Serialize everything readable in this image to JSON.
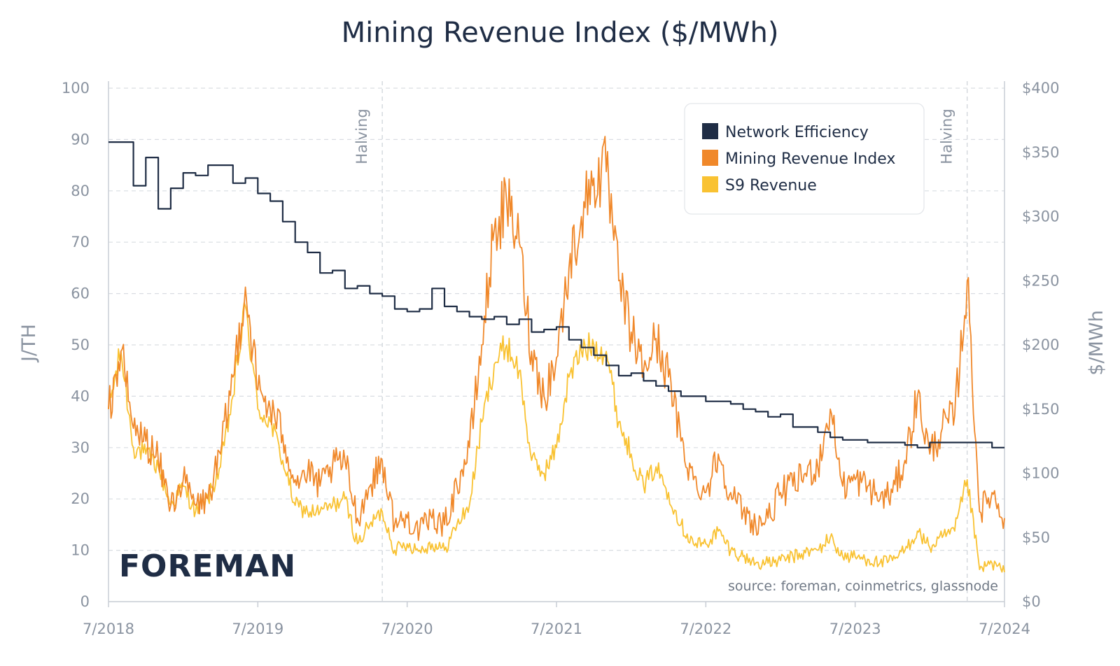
{
  "title": "Mining Revenue Index ($/MWh)",
  "chart_data": {
    "type": "line",
    "title": "Mining Revenue Index ($/MWh)",
    "x_axis": {
      "ticks": [
        "7/2018",
        "7/2019",
        "7/2020",
        "7/2021",
        "7/2022",
        "7/2023",
        "7/2024"
      ],
      "range": [
        "2018-07",
        "2024-07"
      ]
    },
    "y_axis_left": {
      "label": "J/TH",
      "ticks": [
        "0",
        "10",
        "20",
        "30",
        "40",
        "50",
        "60",
        "70",
        "80",
        "90",
        "100"
      ],
      "ylim": [
        0,
        100
      ]
    },
    "y_axis_right": {
      "label": "$/MWh",
      "ticks": [
        "$0",
        "$50",
        "$100",
        "$150",
        "$200",
        "$250",
        "$300",
        "$350",
        "$400"
      ],
      "ylim": [
        0,
        400
      ]
    },
    "grid": true,
    "legend_placement": "top-right",
    "annotations": [
      {
        "text": "Halving",
        "date": "2020-05"
      },
      {
        "text": "Halving",
        "date": "2024-04"
      }
    ],
    "source_text": "source: foreman, coinmetrics, glassnode",
    "brand": "FOREMAN",
    "series": [
      {
        "name": "Network Efficiency",
        "axis": "left",
        "color": "#1f2d45",
        "step": true,
        "points": [
          [
            "2018-07",
            89.5
          ],
          [
            "2018-09",
            81
          ],
          [
            "2018-10",
            86.5
          ],
          [
            "2018-11",
            76.5
          ],
          [
            "2018-12",
            80.5
          ],
          [
            "2019-01",
            83.5
          ],
          [
            "2019-02",
            83
          ],
          [
            "2019-03",
            85
          ],
          [
            "2019-05",
            81.5
          ],
          [
            "2019-06",
            82.5
          ],
          [
            "2019-07",
            79.5
          ],
          [
            "2019-08",
            78
          ],
          [
            "2019-09",
            74
          ],
          [
            "2019-10",
            70
          ],
          [
            "2019-11",
            68
          ],
          [
            "2019-12",
            64
          ],
          [
            "2020-01",
            64.5
          ],
          [
            "2020-02",
            61
          ],
          [
            "2020-03",
            61.5
          ],
          [
            "2020-04",
            60
          ],
          [
            "2020-05",
            59.5
          ],
          [
            "2020-06",
            57
          ],
          [
            "2020-07",
            56.5
          ],
          [
            "2020-08",
            57
          ],
          [
            "2020-09",
            61
          ],
          [
            "2020-10",
            57.5
          ],
          [
            "2020-11",
            56.5
          ],
          [
            "2020-12",
            55.5
          ],
          [
            "2021-01",
            55
          ],
          [
            "2021-02",
            55.5
          ],
          [
            "2021-03",
            54
          ],
          [
            "2021-04",
            55
          ],
          [
            "2021-05",
            52.5
          ],
          [
            "2021-06",
            53
          ],
          [
            "2021-07",
            53.5
          ],
          [
            "2021-08",
            51
          ],
          [
            "2021-09",
            49.5
          ],
          [
            "2021-10",
            48
          ],
          [
            "2021-11",
            46
          ],
          [
            "2021-12",
            44
          ],
          [
            "2022-01",
            44.5
          ],
          [
            "2022-02",
            43
          ],
          [
            "2022-03",
            42
          ],
          [
            "2022-04",
            41
          ],
          [
            "2022-05",
            40
          ],
          [
            "2022-07",
            39
          ],
          [
            "2022-09",
            38.5
          ],
          [
            "2022-10",
            37.5
          ],
          [
            "2022-11",
            37
          ],
          [
            "2022-12",
            36
          ],
          [
            "2023-01",
            36.5
          ],
          [
            "2023-02",
            34
          ],
          [
            "2023-04",
            33
          ],
          [
            "2023-05",
            32
          ],
          [
            "2023-06",
            31.5
          ],
          [
            "2023-08",
            31
          ],
          [
            "2023-11",
            30.5
          ],
          [
            "2023-12",
            30
          ],
          [
            "2024-01",
            31
          ],
          [
            "2024-06",
            30
          ],
          [
            "2024-07",
            30
          ]
        ]
      },
      {
        "name": "Mining Revenue Index",
        "axis": "right",
        "color": "#f0882a",
        "points": [
          [
            "2018-07",
            150
          ],
          [
            "2018-08",
            195
          ],
          [
            "2018-09",
            135
          ],
          [
            "2018-10",
            125
          ],
          [
            "2018-11",
            110
          ],
          [
            "2018-12",
            75
          ],
          [
            "2019-01",
            95
          ],
          [
            "2019-02",
            75
          ],
          [
            "2019-03",
            80
          ],
          [
            "2019-04",
            115
          ],
          [
            "2019-05",
            175
          ],
          [
            "2019-06",
            245
          ],
          [
            "2019-07",
            165
          ],
          [
            "2019-08",
            150
          ],
          [
            "2019-09",
            130
          ],
          [
            "2019-10",
            95
          ],
          [
            "2019-11",
            100
          ],
          [
            "2019-12",
            90
          ],
          [
            "2020-01",
            105
          ],
          [
            "2020-02",
            110
          ],
          [
            "2020-03",
            65
          ],
          [
            "2020-04",
            90
          ],
          [
            "2020-05",
            110
          ],
          [
            "2020-06",
            60
          ],
          [
            "2020-07",
            65
          ],
          [
            "2020-08",
            55
          ],
          [
            "2020-09",
            65
          ],
          [
            "2020-10",
            60
          ],
          [
            "2020-11",
            90
          ],
          [
            "2020-12",
            120
          ],
          [
            "2021-01",
            200
          ],
          [
            "2021-02",
            290
          ],
          [
            "2021-03",
            310
          ],
          [
            "2021-04",
            280
          ],
          [
            "2021-05",
            195
          ],
          [
            "2021-06",
            160
          ],
          [
            "2021-07",
            190
          ],
          [
            "2021-08",
            260
          ],
          [
            "2021-09",
            300
          ],
          [
            "2021-10",
            330
          ],
          [
            "2021-11",
            335
          ],
          [
            "2021-12",
            250
          ],
          [
            "2022-01",
            210
          ],
          [
            "2022-02",
            180
          ],
          [
            "2022-03",
            205
          ],
          [
            "2022-04",
            175
          ],
          [
            "2022-05",
            125
          ],
          [
            "2022-06",
            95
          ],
          [
            "2022-07",
            85
          ],
          [
            "2022-08",
            115
          ],
          [
            "2022-09",
            85
          ],
          [
            "2022-10",
            70
          ],
          [
            "2022-11",
            60
          ],
          [
            "2022-12",
            65
          ],
          [
            "2023-01",
            85
          ],
          [
            "2023-02",
            90
          ],
          [
            "2023-03",
            100
          ],
          [
            "2023-04",
            105
          ],
          [
            "2023-05",
            150
          ],
          [
            "2023-06",
            90
          ],
          [
            "2023-07",
            95
          ],
          [
            "2023-08",
            90
          ],
          [
            "2023-09",
            80
          ],
          [
            "2023-10",
            85
          ],
          [
            "2023-11",
            110
          ],
          [
            "2023-12",
            160
          ],
          [
            "2024-01",
            115
          ],
          [
            "2024-02",
            135
          ],
          [
            "2024-03",
            145
          ],
          [
            "2024-04",
            250
          ],
          [
            "2024-05",
            70
          ],
          [
            "2024-06",
            85
          ],
          [
            "2024-07",
            65
          ]
        ]
      },
      {
        "name": "S9 Revenue",
        "axis": "right",
        "color": "#f9c232",
        "points": [
          [
            "2018-07",
            150
          ],
          [
            "2018-08",
            195
          ],
          [
            "2018-09",
            120
          ],
          [
            "2018-10",
            115
          ],
          [
            "2018-11",
            105
          ],
          [
            "2018-12",
            75
          ],
          [
            "2019-01",
            90
          ],
          [
            "2019-02",
            70
          ],
          [
            "2019-03",
            80
          ],
          [
            "2019-04",
            105
          ],
          [
            "2019-05",
            160
          ],
          [
            "2019-06",
            230
          ],
          [
            "2019-07",
            150
          ],
          [
            "2019-08",
            140
          ],
          [
            "2019-09",
            110
          ],
          [
            "2019-10",
            75
          ],
          [
            "2019-11",
            70
          ],
          [
            "2019-12",
            70
          ],
          [
            "2020-01",
            75
          ],
          [
            "2020-02",
            80
          ],
          [
            "2020-03",
            45
          ],
          [
            "2020-04",
            60
          ],
          [
            "2020-05",
            70
          ],
          [
            "2020-06",
            40
          ],
          [
            "2020-07",
            45
          ],
          [
            "2020-08",
            40
          ],
          [
            "2020-09",
            45
          ],
          [
            "2020-10",
            40
          ],
          [
            "2020-11",
            60
          ],
          [
            "2020-12",
            75
          ],
          [
            "2021-01",
            140
          ],
          [
            "2021-02",
            185
          ],
          [
            "2021-03",
            200
          ],
          [
            "2021-04",
            180
          ],
          [
            "2021-05",
            110
          ],
          [
            "2021-06",
            100
          ],
          [
            "2021-07",
            120
          ],
          [
            "2021-08",
            175
          ],
          [
            "2021-09",
            195
          ],
          [
            "2021-10",
            200
          ],
          [
            "2021-11",
            195
          ],
          [
            "2021-12",
            140
          ],
          [
            "2022-01",
            115
          ],
          [
            "2022-02",
            90
          ],
          [
            "2022-03",
            105
          ],
          [
            "2022-04",
            85
          ],
          [
            "2022-05",
            60
          ],
          [
            "2022-06",
            45
          ],
          [
            "2022-07",
            45
          ],
          [
            "2022-08",
            55
          ],
          [
            "2022-09",
            40
          ],
          [
            "2022-10",
            35
          ],
          [
            "2022-11",
            30
          ],
          [
            "2022-12",
            30
          ],
          [
            "2023-01",
            32
          ],
          [
            "2023-02",
            35
          ],
          [
            "2023-03",
            38
          ],
          [
            "2023-04",
            40
          ],
          [
            "2023-05",
            50
          ],
          [
            "2023-06",
            35
          ],
          [
            "2023-07",
            35
          ],
          [
            "2023-08",
            33
          ],
          [
            "2023-09",
            30
          ],
          [
            "2023-10",
            32
          ],
          [
            "2023-11",
            40
          ],
          [
            "2023-12",
            55
          ],
          [
            "2024-01",
            42
          ],
          [
            "2024-02",
            50
          ],
          [
            "2024-03",
            55
          ],
          [
            "2024-04",
            95
          ],
          [
            "2024-05",
            25
          ],
          [
            "2024-06",
            30
          ],
          [
            "2024-07",
            23
          ]
        ]
      }
    ]
  }
}
